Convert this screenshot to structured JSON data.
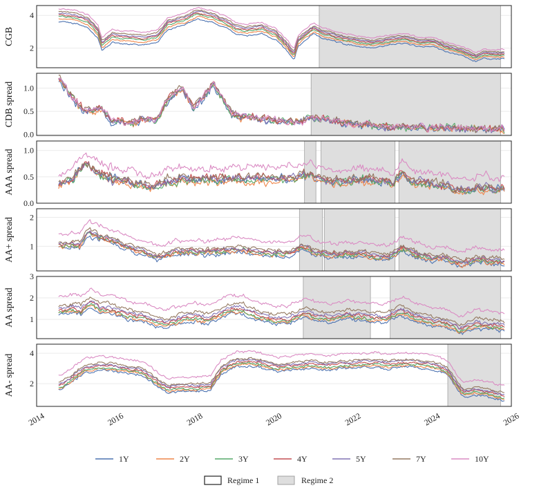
{
  "chart_data": {
    "type": "line",
    "x_axis": {
      "type": "date",
      "range": [
        "2014",
        "2026"
      ],
      "ticks": [
        "2014",
        "2016",
        "2018",
        "2020",
        "2022",
        "2024",
        "2026"
      ]
    },
    "series_names": [
      "1Y",
      "2Y",
      "3Y",
      "4Y",
      "5Y",
      "7Y",
      "10Y"
    ],
    "colors": {
      "1Y": "#4c72b0",
      "2Y": "#ee8549",
      "3Y": "#55a868",
      "4Y": "#c44e52",
      "5Y": "#8172b3",
      "7Y": "#937860",
      "10Y": "#da8bc3",
      "regime2_fill": "#dedede",
      "regime2_edge": "#a0a0a0",
      "grid": "#ebebeb"
    },
    "panels": [
      {
        "ylabel": "CGB",
        "ylim": [
          0.8,
          4.6
        ],
        "yticks": [
          "2",
          "4"
        ],
        "regime2": [
          [
            "2021-01-15",
            "2025-08-15"
          ]
        ],
        "anchors": [
          [
            2014.5,
            3.6
          ],
          [
            2014.9,
            3.5
          ],
          [
            2015.2,
            3.25
          ],
          [
            2015.45,
            2.6
          ],
          [
            2015.55,
            1.85
          ],
          [
            2015.8,
            2.35
          ],
          [
            2016.0,
            2.3
          ],
          [
            2016.6,
            2.2
          ],
          [
            2016.95,
            2.35
          ],
          [
            2017.2,
            3.1
          ],
          [
            2017.7,
            3.45
          ],
          [
            2017.95,
            3.8
          ],
          [
            2018.3,
            3.6
          ],
          [
            2018.7,
            3.2
          ],
          [
            2018.95,
            2.85
          ],
          [
            2019.2,
            2.75
          ],
          [
            2019.6,
            2.9
          ],
          [
            2019.95,
            2.5
          ],
          [
            2020.2,
            1.9
          ],
          [
            2020.4,
            1.25
          ],
          [
            2020.5,
            2.1
          ],
          [
            2020.9,
            2.9
          ],
          [
            2021.1,
            2.6
          ],
          [
            2021.6,
            2.3
          ],
          [
            2022.0,
            2.1
          ],
          [
            2022.4,
            2.0
          ],
          [
            2022.9,
            2.2
          ],
          [
            2023.2,
            2.3
          ],
          [
            2023.6,
            2.05
          ],
          [
            2023.9,
            2.1
          ],
          [
            2024.3,
            1.75
          ],
          [
            2024.7,
            1.5
          ],
          [
            2025.0,
            1.15
          ],
          [
            2025.2,
            1.35
          ],
          [
            2025.7,
            1.35
          ]
        ],
        "offsets": [
          0,
          0.18,
          0.32,
          0.42,
          0.52,
          0.62,
          0.8
        ],
        "decay": 0.55,
        "noise": 0.06
      },
      {
        "ylabel": "CDB spread",
        "ylim": [
          -0.02,
          1.32
        ],
        "yticks": [
          "0.0",
          "0.5",
          "1.0"
        ],
        "regime2": [
          [
            "2020-11-01",
            "2025-08-15"
          ]
        ],
        "anchors": [
          [
            2014.5,
            1.15
          ],
          [
            2014.8,
            0.75
          ],
          [
            2015.0,
            0.55
          ],
          [
            2015.3,
            0.45
          ],
          [
            2015.5,
            0.55
          ],
          [
            2015.8,
            0.25
          ],
          [
            2016.2,
            0.2
          ],
          [
            2016.6,
            0.3
          ],
          [
            2016.9,
            0.25
          ],
          [
            2017.1,
            0.55
          ],
          [
            2017.4,
            0.9
          ],
          [
            2017.6,
            0.95
          ],
          [
            2017.85,
            0.55
          ],
          [
            2018.1,
            0.75
          ],
          [
            2018.35,
            1.1
          ],
          [
            2018.6,
            0.75
          ],
          [
            2018.85,
            0.4
          ],
          [
            2019.2,
            0.35
          ],
          [
            2019.6,
            0.3
          ],
          [
            2020.0,
            0.25
          ],
          [
            2020.5,
            0.25
          ],
          [
            2020.9,
            0.35
          ],
          [
            2021.3,
            0.3
          ],
          [
            2021.8,
            0.22
          ],
          [
            2022.3,
            0.18
          ],
          [
            2022.8,
            0.12
          ],
          [
            2023.3,
            0.15
          ],
          [
            2023.8,
            0.13
          ],
          [
            2024.3,
            0.12
          ],
          [
            2024.8,
            0.12
          ],
          [
            2025.7,
            0.1
          ]
        ],
        "offsets": [
          0,
          0.02,
          0.04,
          0.06,
          0.04,
          0.07,
          0.05
        ],
        "decay": 1.0,
        "noise": 0.09
      },
      {
        "ylabel": "AAA spread",
        "ylim": [
          0.0,
          1.18
        ],
        "yticks": [
          "0.0",
          "0.5",
          "1.0"
        ],
        "regime2": [
          [
            "2020-09-01",
            "2020-12-15"
          ],
          [
            "2021-02-01",
            "2022-12-15"
          ],
          [
            "2023-01-20",
            "2025-08-15"
          ]
        ],
        "anchors": [
          [
            2014.5,
            0.35
          ],
          [
            2014.8,
            0.45
          ],
          [
            2015.1,
            0.75
          ],
          [
            2015.4,
            0.6
          ],
          [
            2015.8,
            0.45
          ],
          [
            2016.2,
            0.4
          ],
          [
            2016.6,
            0.35
          ],
          [
            2016.9,
            0.3
          ],
          [
            2017.1,
            0.4
          ],
          [
            2017.6,
            0.45
          ],
          [
            2018.0,
            0.45
          ],
          [
            2018.5,
            0.45
          ],
          [
            2019.0,
            0.45
          ],
          [
            2019.5,
            0.45
          ],
          [
            2020.0,
            0.45
          ],
          [
            2020.5,
            0.5
          ],
          [
            2020.8,
            0.55
          ],
          [
            2021.0,
            0.45
          ],
          [
            2021.4,
            0.4
          ],
          [
            2021.8,
            0.42
          ],
          [
            2022.2,
            0.45
          ],
          [
            2022.6,
            0.4
          ],
          [
            2022.9,
            0.35
          ],
          [
            2023.1,
            0.55
          ],
          [
            2023.4,
            0.4
          ],
          [
            2023.9,
            0.35
          ],
          [
            2024.3,
            0.3
          ],
          [
            2024.7,
            0.2
          ],
          [
            2025.0,
            0.3
          ],
          [
            2025.7,
            0.25
          ]
        ],
        "offsets": [
          0,
          -0.04,
          0.0,
          0.03,
          0.01,
          0.04,
          0.22
        ],
        "decay": 0.0,
        "noise": 0.09
      },
      {
        "ylabel": "AA+ spread",
        "ylim": [
          0.15,
          2.3
        ],
        "yticks": [
          "1",
          "2"
        ],
        "regime2": [
          [
            "2020-07-15",
            "2021-02-15"
          ],
          [
            "2021-03-01",
            "2022-12-15"
          ],
          [
            "2023-01-20",
            "2025-08-15"
          ]
        ],
        "anchors": [
          [
            2014.5,
            0.95
          ],
          [
            2014.8,
            1.0
          ],
          [
            2015.0,
            0.95
          ],
          [
            2015.2,
            1.4
          ],
          [
            2015.5,
            1.2
          ],
          [
            2015.8,
            1.1
          ],
          [
            2016.2,
            0.85
          ],
          [
            2016.6,
            0.7
          ],
          [
            2017.0,
            0.5
          ],
          [
            2017.4,
            0.7
          ],
          [
            2017.8,
            0.75
          ],
          [
            2018.2,
            0.7
          ],
          [
            2018.6,
            0.75
          ],
          [
            2019.0,
            0.8
          ],
          [
            2019.5,
            0.7
          ],
          [
            2019.9,
            0.65
          ],
          [
            2020.3,
            0.65
          ],
          [
            2020.6,
            0.9
          ],
          [
            2020.9,
            0.7
          ],
          [
            2021.3,
            0.6
          ],
          [
            2021.8,
            0.65
          ],
          [
            2022.3,
            0.6
          ],
          [
            2022.8,
            0.5
          ],
          [
            2023.1,
            0.85
          ],
          [
            2023.5,
            0.6
          ],
          [
            2023.9,
            0.5
          ],
          [
            2024.2,
            0.5
          ],
          [
            2024.6,
            0.3
          ],
          [
            2025.0,
            0.45
          ],
          [
            2025.7,
            0.35
          ]
        ],
        "offsets": [
          0,
          0.05,
          0.08,
          0.12,
          0.15,
          0.2,
          0.5
        ],
        "decay": 0.0,
        "noise": 0.09
      },
      {
        "ylabel": "AA spread",
        "ylim": [
          0.1,
          3.0
        ],
        "yticks": [
          "1",
          "2",
          "3"
        ],
        "regime2": [
          [
            "2020-08-20",
            "2022-05-01"
          ],
          [
            "2022-11-01",
            "2025-08-15"
          ]
        ],
        "anchors": [
          [
            2014.5,
            1.2
          ],
          [
            2014.8,
            1.3
          ],
          [
            2015.0,
            1.2
          ],
          [
            2015.25,
            1.6
          ],
          [
            2015.5,
            1.3
          ],
          [
            2015.8,
            1.25
          ],
          [
            2016.2,
            1.0
          ],
          [
            2016.6,
            0.9
          ],
          [
            2016.9,
            0.7
          ],
          [
            2017.2,
            0.6
          ],
          [
            2017.6,
            0.85
          ],
          [
            2017.9,
            0.9
          ],
          [
            2018.2,
            0.8
          ],
          [
            2018.5,
            1.0
          ],
          [
            2018.8,
            1.3
          ],
          [
            2019.1,
            1.25
          ],
          [
            2019.5,
            0.95
          ],
          [
            2019.9,
            0.8
          ],
          [
            2020.3,
            0.8
          ],
          [
            2020.7,
            1.1
          ],
          [
            2020.95,
            0.95
          ],
          [
            2021.3,
            0.9
          ],
          [
            2021.8,
            1.0
          ],
          [
            2022.3,
            0.9
          ],
          [
            2022.7,
            0.85
          ],
          [
            2023.1,
            1.2
          ],
          [
            2023.5,
            0.9
          ],
          [
            2023.9,
            0.7
          ],
          [
            2024.3,
            0.6
          ],
          [
            2024.6,
            0.3
          ],
          [
            2025.0,
            0.6
          ],
          [
            2025.7,
            0.45
          ]
        ],
        "offsets": [
          0,
          0.08,
          0.14,
          0.22,
          0.3,
          0.45,
          0.85
        ],
        "decay": 0.0,
        "noise": 0.1
      },
      {
        "ylabel": "AA- spread",
        "ylim": [
          0.5,
          4.6
        ],
        "yticks": [
          "2",
          "4"
        ],
        "regime2": [
          [
            "2024-04-15",
            "2025-08-15"
          ]
        ],
        "anchors": [
          [
            2014.5,
            1.6
          ],
          [
            2014.8,
            2.1
          ],
          [
            2015.1,
            2.7
          ],
          [
            2015.5,
            2.9
          ],
          [
            2015.9,
            2.8
          ],
          [
            2016.3,
            2.6
          ],
          [
            2016.6,
            2.5
          ],
          [
            2016.9,
            1.9
          ],
          [
            2017.2,
            1.4
          ],
          [
            2017.6,
            1.5
          ],
          [
            2018.0,
            1.5
          ],
          [
            2018.3,
            1.6
          ],
          [
            2018.55,
            2.6
          ],
          [
            2018.9,
            3.1
          ],
          [
            2019.3,
            3.2
          ],
          [
            2019.7,
            3.0
          ],
          [
            2020.0,
            2.8
          ],
          [
            2020.4,
            2.9
          ],
          [
            2020.8,
            3.0
          ],
          [
            2021.2,
            2.9
          ],
          [
            2021.6,
            3.0
          ],
          [
            2022.0,
            3.05
          ],
          [
            2022.4,
            3.1
          ],
          [
            2022.8,
            3.0
          ],
          [
            2023.2,
            3.1
          ],
          [
            2023.6,
            3.05
          ],
          [
            2024.0,
            2.9
          ],
          [
            2024.3,
            2.5
          ],
          [
            2024.55,
            1.5
          ],
          [
            2024.7,
            1.1
          ],
          [
            2025.0,
            1.3
          ],
          [
            2025.4,
            1.1
          ],
          [
            2025.7,
            0.9
          ]
        ],
        "offsets": [
          0,
          0.1,
          0.18,
          0.3,
          0.4,
          0.5,
          0.95
        ],
        "decay": 0.0,
        "noise": 0.1
      }
    ],
    "legend": {
      "series_labels": [
        "1Y",
        "2Y",
        "3Y",
        "4Y",
        "5Y",
        "7Y",
        "10Y"
      ],
      "regime_labels": [
        "Regime 1",
        "Regime 2"
      ],
      "placement": "bottom"
    }
  }
}
